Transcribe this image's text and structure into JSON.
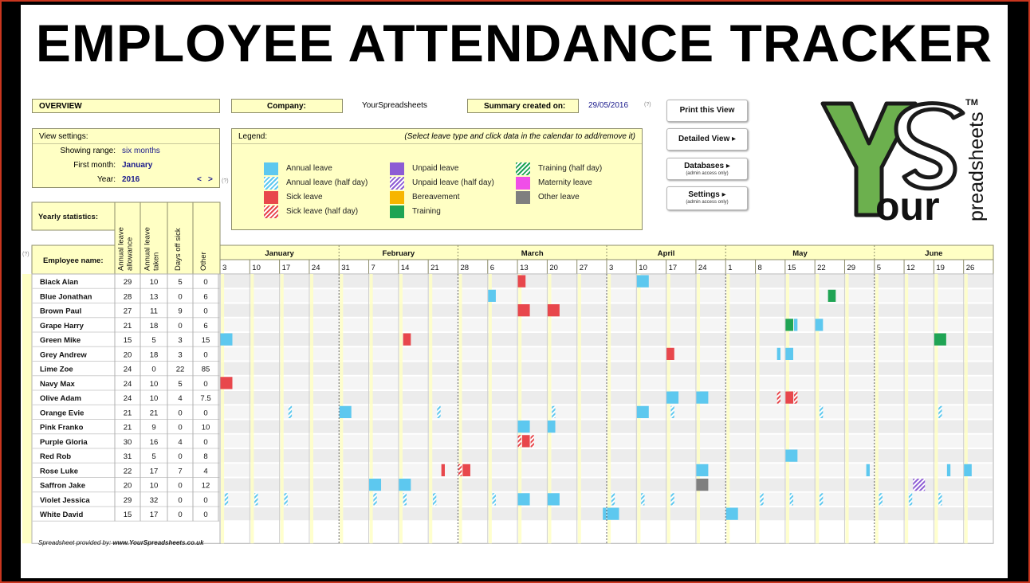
{
  "title": "EMPLOYEE ATTENDANCE TRACKER",
  "overview": {
    "label": "OVERVIEW"
  },
  "company": {
    "label": "Company:",
    "value": "YourSpreadsheets"
  },
  "summary": {
    "label": "Summary created on:",
    "value": "29/05/2016",
    "help": "(?)"
  },
  "view_settings": {
    "title": "View settings:",
    "range_label": "Showing range:",
    "range_value": "six months",
    "first_month_label": "First month:",
    "first_month_value": "January",
    "year_label": "Year:",
    "year_value": "2016",
    "prev": "<",
    "next": ">",
    "help": "(?)"
  },
  "legend": {
    "title": "Legend:",
    "hint": "(Select leave type and click data in the calendar to add/remove it)",
    "items": [
      {
        "label": "Annual leave",
        "color": "#5dc8ef",
        "hatched": false
      },
      {
        "label": "Annual leave (half day)",
        "color": "#5dc8ef",
        "hatched": true
      },
      {
        "label": "Sick leave",
        "color": "#e8474c",
        "hatched": false
      },
      {
        "label": "Sick leave (half day)",
        "color": "#e8474c",
        "hatched": true
      },
      {
        "label": "Unpaid leave",
        "color": "#8d5cd4",
        "hatched": false
      },
      {
        "label": "Unpaid leave (half day)",
        "color": "#8d5cd4",
        "hatched": true
      },
      {
        "label": "Bereavement",
        "color": "#f7b500",
        "hatched": false
      },
      {
        "label": "Training",
        "color": "#1fa454",
        "hatched": false
      },
      {
        "label": "Training (half day)",
        "color": "#1fa454",
        "hatched": true
      },
      {
        "label": "Maternity leave",
        "color": "#f04ee8",
        "hatched": false
      },
      {
        "label": "Other leave",
        "color": "#7f7f7f",
        "hatched": false
      }
    ]
  },
  "buttons": {
    "print": "Print this View",
    "detailed": "Detailed View ▸",
    "databases": "Databases ▸",
    "databases_sub": "(admin access only)",
    "settings": "Settings ▸",
    "settings_sub": "(admin access only)"
  },
  "logo": {
    "tm": "TM",
    "word1": "our",
    "word2": "preadsheets"
  },
  "stats": {
    "title": "Yearly statistics:",
    "employee_header": "Employee name:",
    "help": "(?)",
    "columns": [
      "Annual leave allowance",
      "Annual leave taken",
      "Days off sick",
      "Other"
    ]
  },
  "calendar": {
    "months": [
      "January",
      "February",
      "March",
      "April",
      "May",
      "June"
    ],
    "weeks": [
      "3",
      "10",
      "17",
      "24",
      "31",
      "7",
      "14",
      "21",
      "28",
      "6",
      "13",
      "20",
      "27",
      "3",
      "10",
      "17",
      "24",
      "1",
      "8",
      "15",
      "22",
      "29",
      "5",
      "12",
      "19",
      "26"
    ]
  },
  "employees": [
    {
      "name": "Black Alan",
      "stats": [
        "29",
        "10",
        "5",
        "0"
      ]
    },
    {
      "name": "Blue Jonathan",
      "stats": [
        "28",
        "13",
        "0",
        "6"
      ]
    },
    {
      "name": "Brown Paul",
      "stats": [
        "27",
        "11",
        "9",
        "0"
      ]
    },
    {
      "name": "Grape Harry",
      "stats": [
        "21",
        "18",
        "0",
        "6"
      ]
    },
    {
      "name": "Green Mike",
      "stats": [
        "15",
        "5",
        "3",
        "15"
      ]
    },
    {
      "name": "Grey Andrew",
      "stats": [
        "20",
        "18",
        "3",
        "0"
      ]
    },
    {
      "name": "Lime Zoe",
      "stats": [
        "24",
        "0",
        "22",
        "85"
      ]
    },
    {
      "name": "Navy Max",
      "stats": [
        "24",
        "10",
        "5",
        "0"
      ]
    },
    {
      "name": "Olive Adam",
      "stats": [
        "24",
        "10",
        "4",
        "7.5"
      ]
    },
    {
      "name": "Orange Evie",
      "stats": [
        "21",
        "21",
        "0",
        "0"
      ]
    },
    {
      "name": "Pink Franko",
      "stats": [
        "21",
        "9",
        "0",
        "10"
      ]
    },
    {
      "name": "Purple Gloria",
      "stats": [
        "30",
        "16",
        "4",
        "0"
      ]
    },
    {
      "name": "Red Rob",
      "stats": [
        "31",
        "5",
        "0",
        "8"
      ]
    },
    {
      "name": "Rose Luke",
      "stats": [
        "22",
        "17",
        "7",
        "4"
      ]
    },
    {
      "name": "Saffron Jake",
      "stats": [
        "20",
        "10",
        "0",
        "12"
      ]
    },
    {
      "name": "Violet Jessica",
      "stats": [
        "29",
        "32",
        "0",
        "0"
      ]
    },
    {
      "name": "White David",
      "stats": [
        "15",
        "17",
        "0",
        "0"
      ]
    }
  ],
  "leave_entries": [
    {
      "row": 0,
      "week": 10,
      "day": 0,
      "days": 2,
      "type": "sick"
    },
    {
      "row": 0,
      "week": 14,
      "day": 0,
      "days": 3,
      "type": "annual"
    },
    {
      "row": 1,
      "week": 9,
      "day": 0,
      "days": 2,
      "type": "annual"
    },
    {
      "row": 1,
      "week": 20,
      "day": 3,
      "days": 2,
      "type": "training"
    },
    {
      "row": 2,
      "week": 10,
      "day": 0,
      "days": 3,
      "type": "sick"
    },
    {
      "row": 2,
      "week": 11,
      "day": 0,
      "days": 3,
      "type": "sick"
    },
    {
      "row": 3,
      "week": 19,
      "day": 0,
      "days": 2,
      "type": "training"
    },
    {
      "row": 3,
      "week": 19,
      "day": 2,
      "days": 1,
      "type": "annual"
    },
    {
      "row": 3,
      "week": 20,
      "day": 0,
      "days": 2,
      "type": "annual"
    },
    {
      "row": 4,
      "week": 0,
      "day": 0,
      "days": 3,
      "type": "annual"
    },
    {
      "row": 4,
      "week": 6,
      "day": 1,
      "days": 2,
      "type": "sick"
    },
    {
      "row": 4,
      "week": 24,
      "day": 0,
      "days": 3,
      "type": "training"
    },
    {
      "row": 5,
      "week": 15,
      "day": 0,
      "days": 2,
      "type": "sick"
    },
    {
      "row": 5,
      "week": 18,
      "day": 5,
      "days": 1,
      "type": "annual"
    },
    {
      "row": 5,
      "week": 19,
      "day": 0,
      "days": 2,
      "type": "annual"
    },
    {
      "row": 7,
      "week": 0,
      "day": 0,
      "days": 3,
      "type": "sick"
    },
    {
      "row": 8,
      "week": 15,
      "day": 0,
      "days": 3,
      "type": "annual"
    },
    {
      "row": 8,
      "week": 16,
      "day": 0,
      "days": 3,
      "type": "annual"
    },
    {
      "row": 8,
      "week": 18,
      "day": 5,
      "days": 1,
      "type": "sick-half"
    },
    {
      "row": 8,
      "week": 19,
      "day": 0,
      "days": 2,
      "type": "sick"
    },
    {
      "row": 8,
      "week": 19,
      "day": 2,
      "days": 1,
      "type": "sick-half"
    },
    {
      "row": 9,
      "week": 2,
      "day": 2,
      "days": 1,
      "type": "annual-half"
    },
    {
      "row": 9,
      "week": 4,
      "day": 0,
      "days": 3,
      "type": "annual"
    },
    {
      "row": 9,
      "week": 7,
      "day": 2,
      "days": 1,
      "type": "annual-half"
    },
    {
      "row": 9,
      "week": 11,
      "day": 1,
      "days": 1,
      "type": "annual-half"
    },
    {
      "row": 9,
      "week": 14,
      "day": 0,
      "days": 3,
      "type": "annual"
    },
    {
      "row": 9,
      "week": 15,
      "day": 1,
      "days": 1,
      "type": "annual-half"
    },
    {
      "row": 9,
      "week": 20,
      "day": 1,
      "days": 1,
      "type": "annual-half"
    },
    {
      "row": 9,
      "week": 24,
      "day": 1,
      "days": 1,
      "type": "annual-half"
    },
    {
      "row": 10,
      "week": 10,
      "day": 0,
      "days": 3,
      "type": "annual"
    },
    {
      "row": 10,
      "week": 11,
      "day": 0,
      "days": 2,
      "type": "annual"
    },
    {
      "row": 11,
      "week": 10,
      "day": 0,
      "days": 1,
      "type": "sick-half"
    },
    {
      "row": 11,
      "week": 10,
      "day": 1,
      "days": 2,
      "type": "sick"
    },
    {
      "row": 11,
      "week": 10,
      "day": 3,
      "days": 1,
      "type": "sick-half"
    },
    {
      "row": 12,
      "week": 19,
      "day": 0,
      "days": 3,
      "type": "annual"
    },
    {
      "row": 13,
      "week": 7,
      "day": 3,
      "days": 1,
      "type": "sick"
    },
    {
      "row": 13,
      "week": 8,
      "day": 0,
      "days": 1,
      "type": "sick-half"
    },
    {
      "row": 13,
      "week": 8,
      "day": 1,
      "days": 2,
      "type": "sick"
    },
    {
      "row": 13,
      "week": 16,
      "day": 0,
      "days": 3,
      "type": "annual"
    },
    {
      "row": 13,
      "week": 21,
      "day": 5,
      "days": 1,
      "type": "annual"
    },
    {
      "row": 13,
      "week": 24,
      "day": 3,
      "days": 1,
      "type": "annual"
    },
    {
      "row": 13,
      "week": 25,
      "day": 0,
      "days": 2,
      "type": "annual"
    },
    {
      "row": 14,
      "week": 5,
      "day": 0,
      "days": 3,
      "type": "annual"
    },
    {
      "row": 14,
      "week": 6,
      "day": 0,
      "days": 3,
      "type": "annual"
    },
    {
      "row": 14,
      "week": 16,
      "day": 0,
      "days": 3,
      "type": "other"
    },
    {
      "row": 14,
      "week": 23,
      "day": 2,
      "days": 3,
      "type": "unpaid-half"
    },
    {
      "row": 15,
      "week": 0,
      "day": 1,
      "days": 1,
      "type": "annual-half"
    },
    {
      "row": 15,
      "week": 1,
      "day": 1,
      "days": 1,
      "type": "annual-half"
    },
    {
      "row": 15,
      "week": 2,
      "day": 1,
      "days": 1,
      "type": "annual-half"
    },
    {
      "row": 15,
      "week": 5,
      "day": 1,
      "days": 1,
      "type": "annual-half"
    },
    {
      "row": 15,
      "week": 6,
      "day": 1,
      "days": 1,
      "type": "annual-half"
    },
    {
      "row": 15,
      "week": 7,
      "day": 1,
      "days": 1,
      "type": "annual-half"
    },
    {
      "row": 15,
      "week": 9,
      "day": 1,
      "days": 1,
      "type": "annual-half"
    },
    {
      "row": 15,
      "week": 10,
      "day": 0,
      "days": 3,
      "type": "annual"
    },
    {
      "row": 15,
      "week": 11,
      "day": 0,
      "days": 3,
      "type": "annual"
    },
    {
      "row": 15,
      "week": 13,
      "day": 1,
      "days": 1,
      "type": "annual-half"
    },
    {
      "row": 15,
      "week": 14,
      "day": 1,
      "days": 1,
      "type": "annual-half"
    },
    {
      "row": 15,
      "week": 15,
      "day": 1,
      "days": 1,
      "type": "annual-half"
    },
    {
      "row": 15,
      "week": 18,
      "day": 1,
      "days": 1,
      "type": "annual-half"
    },
    {
      "row": 15,
      "week": 19,
      "day": 1,
      "days": 1,
      "type": "annual-half"
    },
    {
      "row": 15,
      "week": 20,
      "day": 1,
      "days": 1,
      "type": "annual-half"
    },
    {
      "row": 15,
      "week": 22,
      "day": 1,
      "days": 1,
      "type": "annual-half"
    },
    {
      "row": 15,
      "week": 23,
      "day": 1,
      "days": 1,
      "type": "annual-half"
    },
    {
      "row": 15,
      "week": 24,
      "day": 1,
      "days": 1,
      "type": "annual-half"
    },
    {
      "row": 16,
      "week": 12,
      "day": 6,
      "days": 1,
      "type": "annual"
    },
    {
      "row": 16,
      "week": 13,
      "day": 0,
      "days": 3,
      "type": "annual"
    },
    {
      "row": 16,
      "week": 17,
      "day": 0,
      "days": 3,
      "type": "annual"
    }
  ],
  "footer": {
    "prefix": "Spreadsheet provided by:",
    "link": "www.YourSpreadsheets.co.uk"
  }
}
